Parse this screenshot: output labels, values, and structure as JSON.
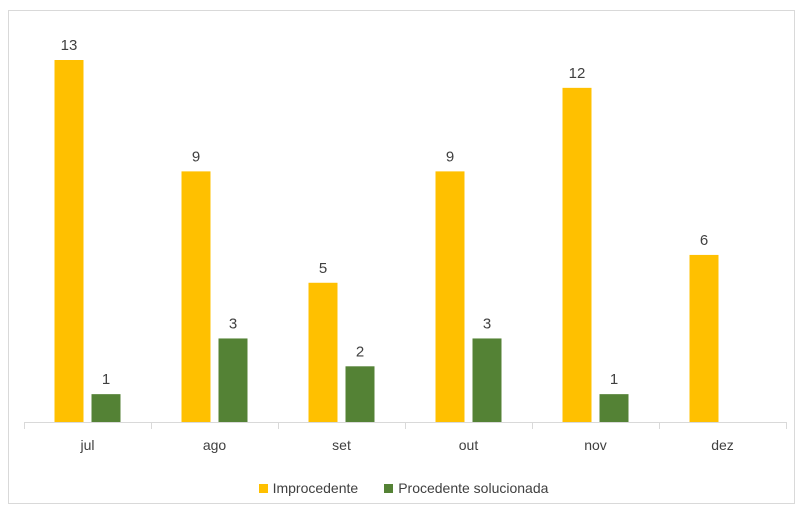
{
  "chart_data": {
    "type": "bar",
    "categories": [
      "jul",
      "ago",
      "set",
      "out",
      "nov",
      "dez"
    ],
    "series": [
      {
        "name": "Improcedente",
        "color": "#FFC000",
        "values": [
          13,
          9,
          5,
          9,
          12,
          6
        ]
      },
      {
        "name": "Procedente solucionada",
        "color": "#548235",
        "values": [
          1,
          3,
          2,
          3,
          1,
          null
        ]
      }
    ],
    "title": "",
    "xlabel": "",
    "ylabel": "",
    "ylim": [
      0,
      13
    ],
    "grid": false,
    "legend_position": "bottom",
    "data_labels": true
  }
}
